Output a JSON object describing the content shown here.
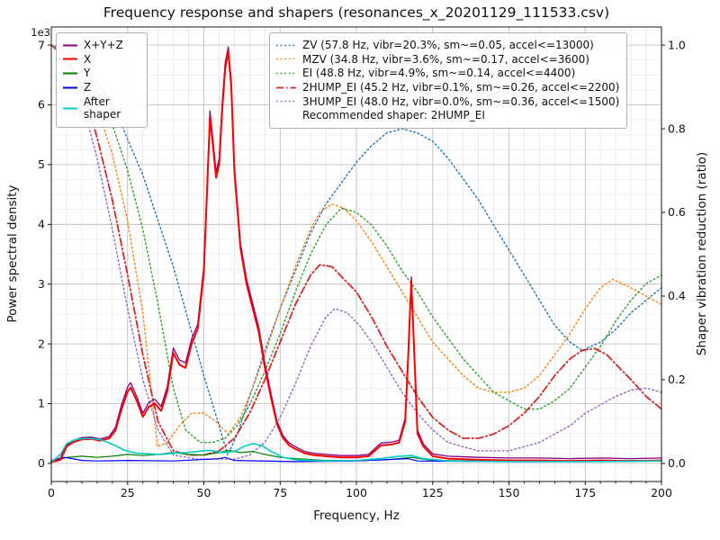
{
  "figure": {
    "title": "Frequency response and shapers (resonances_x_20201129_111533.csv)",
    "xlabel": "Frequency, Hz",
    "ylabel_left": "Power spectral density",
    "ylabel_right": "Shaper vibration reduction (ratio)",
    "offset_text": "1e3",
    "background": "#ffffff"
  },
  "legend_psd": {
    "items": [
      {
        "label": "X+Y+Z",
        "color": "#800080"
      },
      {
        "label": "X",
        "color": "#ff0000"
      },
      {
        "label": "Y",
        "color": "#008000"
      },
      {
        "label": "Z",
        "color": "#0000ff"
      },
      {
        "label": "After shaper",
        "color": "#00cccc"
      }
    ]
  },
  "legend_shapers": {
    "items": [
      {
        "label": "ZV (57.8 Hz, vibr=20.3%, sm~=0.05, accel<=13000)",
        "color": "#1f77b4",
        "dash": "dotted"
      },
      {
        "label": "MZV (34.8 Hz, vibr=3.6%, sm~=0.17, accel<=3600)",
        "color": "#ff7f0e",
        "dash": "dotted"
      },
      {
        "label": "EI (48.8 Hz, vibr=4.9%, sm~=0.14, accel<=4400)",
        "color": "#2ca02c",
        "dash": "dotted"
      },
      {
        "label": "2HUMP_EI (45.2 Hz, vibr=0.1%, sm~=0.26, accel<=2200)",
        "color": "#d62728",
        "dash": "dashdot"
      },
      {
        "label": "3HUMP_EI (48.0 Hz, vibr=0.0%, sm~=0.36, accel<=1500)",
        "color": "#9467bd",
        "dash": "dotted"
      }
    ],
    "note": "Recommended shaper: 2HUMP_EI"
  },
  "chart_data": {
    "type": "line",
    "title": "Frequency response and shapers (resonances_x_20201129_111533.csv)",
    "xlabel": "Frequency, Hz",
    "ylabel_left": "Power spectral density",
    "ylabel_right": "Shaper vibration reduction (ratio)",
    "psd_units_note": "Left-axis PSD values are in units of 1e3 (offset text shown on plot)",
    "grid": "major grey + minor lightgrey",
    "legend_positions": [
      "upper left",
      "upper right"
    ],
    "x_axis": {
      "lim": [
        0,
        200
      ],
      "ticks": [
        0,
        25,
        50,
        75,
        100,
        125,
        150,
        175,
        200
      ],
      "minor_step": 5
    },
    "y_left": {
      "lim": [
        0,
        7
      ],
      "ticks": [
        0,
        1,
        2,
        3,
        4,
        5,
        6,
        7
      ],
      "minor_step": 0.25,
      "scale_label": "1e3"
    },
    "y_right": {
      "lim": [
        0,
        1
      ],
      "ticks": [
        0,
        0.2,
        0.4,
        0.6,
        0.8,
        1
      ]
    },
    "shapers": [
      {
        "name": "ZV",
        "freq_hz": 57.8,
        "vibr_pct": 20.3,
        "smoothing": 0.05,
        "max_accel": 13000
      },
      {
        "name": "MZV",
        "freq_hz": 34.8,
        "vibr_pct": 3.6,
        "smoothing": 0.17,
        "max_accel": 3600
      },
      {
        "name": "EI",
        "freq_hz": 48.8,
        "vibr_pct": 4.9,
        "smoothing": 0.14,
        "max_accel": 4400
      },
      {
        "name": "2HUMP_EI",
        "freq_hz": 45.2,
        "vibr_pct": 0.1,
        "smoothing": 0.26,
        "max_accel": 2200
      },
      {
        "name": "3HUMP_EI",
        "freq_hz": 48.0,
        "vibr_pct": 0.0,
        "smoothing": 0.36,
        "max_accel": 1500
      }
    ],
    "recommended_shaper": "2HUMP_EI",
    "series": [
      {
        "id": "zv",
        "name": "ZV",
        "axis": "right",
        "color": "#1f77b4",
        "dash": "dotted",
        "width": 1.4,
        "x": [
          0,
          10,
          20,
          30,
          40,
          50,
          55,
          57.8,
          61,
          65,
          70,
          75,
          80,
          85,
          90,
          95,
          100,
          105,
          110,
          115,
          120,
          125,
          130,
          135,
          140,
          145,
          150,
          155,
          160,
          165,
          170,
          174,
          180,
          185,
          190,
          195,
          200
        ],
        "y": [
          1.0,
          0.96,
          0.86,
          0.69,
          0.47,
          0.21,
          0.09,
          0.02,
          0.07,
          0.16,
          0.27,
          0.37,
          0.46,
          0.55,
          0.62,
          0.67,
          0.72,
          0.76,
          0.79,
          0.8,
          0.79,
          0.77,
          0.73,
          0.68,
          0.63,
          0.57,
          0.51,
          0.45,
          0.39,
          0.33,
          0.29,
          0.27,
          0.29,
          0.32,
          0.36,
          0.39,
          0.42
        ]
      },
      {
        "id": "mzv",
        "name": "MZV",
        "axis": "right",
        "color": "#ff7f0e",
        "dash": "dotted",
        "width": 1.4,
        "x": [
          0,
          5,
          10,
          15,
          20,
          25,
          30,
          34.8,
          38,
          42,
          46,
          50,
          54,
          58,
          62,
          66,
          70,
          75,
          80,
          85,
          88,
          92,
          96,
          100,
          105,
          110,
          115,
          120,
          125,
          130,
          135,
          140,
          145,
          150,
          155,
          160,
          165,
          170,
          175,
          180,
          184,
          190,
          195,
          200
        ],
        "y": [
          1.0,
          0.98,
          0.93,
          0.85,
          0.74,
          0.58,
          0.36,
          0.04,
          0.05,
          0.09,
          0.12,
          0.12,
          0.1,
          0.07,
          0.11,
          0.18,
          0.26,
          0.37,
          0.47,
          0.56,
          0.6,
          0.62,
          0.61,
          0.58,
          0.53,
          0.47,
          0.41,
          0.35,
          0.29,
          0.25,
          0.21,
          0.18,
          0.17,
          0.17,
          0.18,
          0.21,
          0.26,
          0.31,
          0.37,
          0.42,
          0.44,
          0.42,
          0.4,
          0.38
        ]
      },
      {
        "id": "ei",
        "name": "EI",
        "axis": "right",
        "color": "#2ca02c",
        "dash": "dotted",
        "width": 1.4,
        "x": [
          0,
          5,
          10,
          15,
          20,
          25,
          30,
          35,
          40,
          44,
          48.8,
          53,
          57,
          61,
          65,
          70,
          75,
          80,
          85,
          90,
          95,
          100,
          105,
          110,
          115,
          120,
          125,
          130,
          135,
          140,
          145,
          150,
          155,
          160,
          165,
          170,
          175,
          180,
          185,
          190,
          195,
          200
        ],
        "y": [
          1.0,
          0.99,
          0.95,
          0.89,
          0.81,
          0.7,
          0.56,
          0.38,
          0.18,
          0.08,
          0.05,
          0.05,
          0.06,
          0.09,
          0.14,
          0.22,
          0.31,
          0.41,
          0.5,
          0.57,
          0.61,
          0.6,
          0.57,
          0.52,
          0.46,
          0.41,
          0.35,
          0.3,
          0.25,
          0.21,
          0.17,
          0.15,
          0.13,
          0.13,
          0.15,
          0.18,
          0.23,
          0.28,
          0.34,
          0.39,
          0.43,
          0.45
        ]
      },
      {
        "id": "2hump-ei",
        "name": "2HUMP_EI",
        "axis": "right",
        "color": "#d62728",
        "dash": "dashdot",
        "width": 1.8,
        "x": [
          0,
          5,
          10,
          15,
          20,
          25,
          30,
          35,
          40,
          45.2,
          50,
          55,
          60,
          65,
          70,
          75,
          80,
          85,
          88,
          92,
          96,
          100,
          105,
          110,
          115,
          120,
          125,
          130,
          135,
          140,
          145,
          150,
          155,
          160,
          165,
          170,
          174,
          178,
          182,
          186,
          190,
          195,
          200
        ],
        "y": [
          1.0,
          0.97,
          0.9,
          0.78,
          0.63,
          0.45,
          0.26,
          0.1,
          0.03,
          0.02,
          0.02,
          0.03,
          0.06,
          0.12,
          0.2,
          0.29,
          0.38,
          0.45,
          0.475,
          0.47,
          0.44,
          0.41,
          0.35,
          0.28,
          0.22,
          0.16,
          0.11,
          0.08,
          0.06,
          0.06,
          0.07,
          0.09,
          0.12,
          0.16,
          0.21,
          0.25,
          0.27,
          0.275,
          0.26,
          0.23,
          0.2,
          0.16,
          0.13
        ]
      },
      {
        "id": "3hump-ei",
        "name": "3HUMP_EI",
        "axis": "right",
        "color": "#9467bd",
        "dash": "dotted",
        "width": 1.4,
        "x": [
          0,
          5,
          10,
          15,
          20,
          25,
          30,
          35,
          40,
          48,
          55,
          60,
          65,
          70,
          75,
          80,
          85,
          90,
          93,
          97,
          101,
          105,
          110,
          115,
          120,
          125,
          130,
          135,
          140,
          145,
          150,
          155,
          160,
          165,
          170,
          175,
          180,
          185,
          190,
          195,
          200
        ],
        "y": [
          1.0,
          0.96,
          0.87,
          0.73,
          0.56,
          0.37,
          0.2,
          0.08,
          0.02,
          0.01,
          0.01,
          0.01,
          0.02,
          0.05,
          0.11,
          0.19,
          0.28,
          0.35,
          0.37,
          0.36,
          0.33,
          0.29,
          0.23,
          0.17,
          0.12,
          0.08,
          0.05,
          0.04,
          0.03,
          0.03,
          0.03,
          0.04,
          0.05,
          0.07,
          0.09,
          0.12,
          0.14,
          0.16,
          0.175,
          0.18,
          0.17
        ]
      },
      {
        "id": "xyz",
        "name": "X+Y+Z",
        "axis": "left",
        "color": "#800080",
        "dash": "solid",
        "width": 1.3,
        "x": [
          0,
          3,
          5,
          7,
          10,
          13,
          16,
          19,
          21,
          23,
          25,
          26,
          28,
          30,
          32,
          34,
          36,
          38,
          40,
          42,
          44,
          46,
          48,
          50,
          51,
          52,
          53,
          54,
          55,
          56,
          57,
          58,
          59,
          60,
          62,
          64,
          66,
          68,
          70,
          72,
          74,
          76,
          78,
          80,
          83,
          86,
          90,
          95,
          100,
          104,
          108,
          112,
          114,
          116,
          117,
          118,
          119,
          120,
          122,
          125,
          130,
          140,
          150,
          160,
          170,
          180,
          190,
          200
        ],
        "y": [
          0.05,
          0.09,
          0.31,
          0.38,
          0.43,
          0.44,
          0.41,
          0.45,
          0.6,
          0.98,
          1.28,
          1.35,
          1.12,
          0.84,
          1.02,
          1.07,
          0.95,
          1.28,
          1.93,
          1.73,
          1.68,
          2.08,
          2.33,
          3.3,
          4.6,
          5.9,
          5.4,
          4.88,
          5.1,
          6.0,
          6.7,
          6.97,
          6.4,
          5.0,
          3.68,
          3.08,
          2.68,
          2.28,
          1.68,
          1.17,
          0.7,
          0.46,
          0.34,
          0.28,
          0.2,
          0.17,
          0.15,
          0.13,
          0.13,
          0.15,
          0.34,
          0.36,
          0.39,
          0.76,
          1.88,
          3.12,
          1.88,
          0.56,
          0.32,
          0.16,
          0.12,
          0.1,
          0.09,
          0.09,
          0.08,
          0.09,
          0.08,
          0.09
        ]
      },
      {
        "id": "y",
        "name": "Y",
        "axis": "left",
        "color": "#008000",
        "dash": "solid",
        "width": 1.2,
        "x": [
          0,
          5,
          10,
          15,
          20,
          25,
          30,
          35,
          40,
          45,
          50,
          55,
          58,
          62,
          66,
          70,
          75,
          80,
          90,
          100,
          110,
          118,
          125,
          150,
          200
        ],
        "y": [
          0.02,
          0.1,
          0.12,
          0.1,
          0.12,
          0.15,
          0.13,
          0.15,
          0.18,
          0.15,
          0.14,
          0.18,
          0.22,
          0.18,
          0.2,
          0.15,
          0.1,
          0.08,
          0.05,
          0.05,
          0.06,
          0.1,
          0.05,
          0.04,
          0.05
        ]
      },
      {
        "id": "z",
        "name": "Z",
        "axis": "left",
        "color": "#0000ff",
        "dash": "solid",
        "width": 1.2,
        "x": [
          0,
          4,
          7,
          10,
          15,
          25,
          40,
          55,
          57,
          60,
          80,
          100,
          117,
          120,
          150,
          200
        ],
        "y": [
          0.02,
          0.1,
          0.08,
          0.05,
          0.04,
          0.05,
          0.04,
          0.08,
          0.1,
          0.05,
          0.03,
          0.04,
          0.08,
          0.04,
          0.03,
          0.04
        ]
      },
      {
        "id": "x",
        "name": "X",
        "axis": "left",
        "color": "#ff0000",
        "dash": "solid",
        "width": 2.0,
        "x": [
          0,
          3,
          5,
          7,
          10,
          13,
          16,
          19,
          21,
          23,
          25,
          26,
          28,
          30,
          32,
          34,
          36,
          38,
          40,
          42,
          44,
          46,
          48,
          50,
          51,
          52,
          53,
          54,
          55,
          56,
          57,
          58,
          59,
          60,
          62,
          64,
          66,
          68,
          70,
          72,
          74,
          76,
          78,
          80,
          83,
          86,
          90,
          95,
          100,
          104,
          108,
          112,
          114,
          116,
          117,
          118,
          119,
          120,
          122,
          125,
          130,
          140,
          150,
          160,
          170,
          180,
          190,
          200
        ],
        "y": [
          0.02,
          0.06,
          0.28,
          0.35,
          0.4,
          0.41,
          0.38,
          0.42,
          0.55,
          0.9,
          1.2,
          1.27,
          1.05,
          0.78,
          0.95,
          1.0,
          0.88,
          1.2,
          1.85,
          1.65,
          1.6,
          2.0,
          2.25,
          3.2,
          4.5,
          5.8,
          5.3,
          4.78,
          5.0,
          5.9,
          6.6,
          6.9,
          6.3,
          4.9,
          3.6,
          3.0,
          2.6,
          2.2,
          1.6,
          1.1,
          0.65,
          0.42,
          0.3,
          0.24,
          0.17,
          0.14,
          0.12,
          0.1,
          0.1,
          0.12,
          0.3,
          0.32,
          0.35,
          0.7,
          1.8,
          3.05,
          1.8,
          0.5,
          0.28,
          0.12,
          0.08,
          0.06,
          0.05,
          0.05,
          0.04,
          0.05,
          0.04,
          0.05
        ]
      },
      {
        "id": "after-shaper",
        "name": "After shaper",
        "axis": "left",
        "color": "#00cccc",
        "dash": "solid",
        "width": 1.6,
        "x": [
          0,
          3,
          5,
          8,
          12,
          16,
          20,
          24,
          28,
          32,
          36,
          40,
          44,
          48,
          52,
          56,
          60,
          63,
          66,
          69,
          72,
          76,
          80,
          90,
          100,
          108,
          114,
          118,
          122,
          130,
          150,
          175,
          200
        ],
        "y": [
          0.02,
          0.15,
          0.33,
          0.4,
          0.42,
          0.4,
          0.32,
          0.22,
          0.17,
          0.16,
          0.15,
          0.17,
          0.18,
          0.2,
          0.22,
          0.18,
          0.2,
          0.28,
          0.33,
          0.3,
          0.2,
          0.1,
          0.06,
          0.04,
          0.05,
          0.08,
          0.12,
          0.13,
          0.08,
          0.04,
          0.03,
          0.03,
          0.04
        ]
      }
    ]
  }
}
